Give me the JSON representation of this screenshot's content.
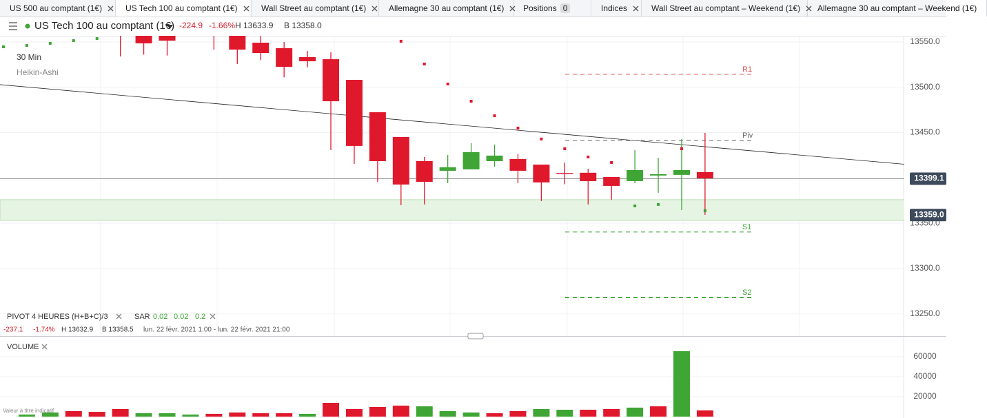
{
  "tabs": [
    {
      "label": "US 500 au comptant (1€)",
      "closable": true
    },
    {
      "label": "US Tech 100 au comptant (1€)",
      "closable": true,
      "active": true
    },
    {
      "label": "Wall Street au comptant (1€)",
      "closable": true
    },
    {
      "label": "Allemagne 30 au comptant (1€)",
      "closable": true
    },
    {
      "label": "Positions",
      "badge": "0",
      "closable": false
    },
    {
      "label": "Indices",
      "closable": true
    },
    {
      "label": "Wall Street au comptant – Weekend (1€)",
      "closable": true
    },
    {
      "label": "Allemagne 30 au comptant – Weekend (1€)",
      "closable": false
    }
  ],
  "header": {
    "instrument": "US Tech 100 au comptant (1€)",
    "change": "-224.9",
    "change_pct": "-1.66%",
    "high": "H 13633.9",
    "low": "B 13358.0"
  },
  "chart_data": [
    {
      "type": "candlestick",
      "timeframe": "30 Min",
      "style": "Heikin-Ashi",
      "open": [
        null,
        null,
        null,
        null,
        null,
        13570,
        13565,
        13560,
        null,
        13575,
        13565,
        13549.2,
        13543.2,
        13533.3,
        13531,
        13508.2,
        13472.5,
        13445.1,
        13418.5,
        13407.9,
        13409.4,
        13418.5,
        13420.8,
        13414.7,
        13405.3,
        13405.7,
        13401,
        13396.5,
        13402.6,
        13403.4,
        13406.4
      ],
      "high": [
        null,
        null,
        null,
        null,
        null,
        13580,
        13575,
        13570,
        null,
        13580,
        13570,
        13560,
        13550,
        13540,
        13538.6,
        13508.2,
        13472.5,
        13445.1,
        13423.1,
        13425.4,
        13438.3,
        13436.8,
        13426.1,
        13414.7,
        13417,
        13410.2,
        13401,
        13430.7,
        13422.3,
        13442.9,
        13449.7
      ],
      "low": [
        null,
        null,
        null,
        null,
        null,
        13534,
        13536,
        13535,
        null,
        13541.6,
        13525.7,
        13530,
        13511,
        13522,
        13430.7,
        13415.5,
        13395.7,
        13369.9,
        13370.7,
        13394.2,
        13409.4,
        13412.5,
        13394.2,
        13374.5,
        13393,
        13370.7,
        13376,
        13394.2,
        13383.6,
        13364.6,
        13359.3
      ],
      "close": [
        null,
        null,
        null,
        null,
        null,
        13560,
        13548.5,
        13551.5,
        null,
        13565,
        13541.6,
        13537.8,
        13522.6,
        13528.7,
        13484.6,
        13435.3,
        13418.5,
        13392.7,
        13395.7,
        13411.7,
        13428.4,
        13424.6,
        13407.9,
        13395,
        13404.9,
        13396.5,
        13391.2,
        13408.7,
        13404.1,
        13408.7,
        13399.5
      ],
      "up_color": "#3fa535",
      "down_color": "#e0182c",
      "sar": {
        "values": [
          13544.7,
          13546.2,
          13548.5,
          13551.5,
          13553.8,
          null,
          null,
          null,
          null,
          null,
          null,
          null,
          null,
          null,
          null,
          null,
          null,
          13550.8,
          13525.7,
          13503.6,
          13484.6,
          13468.6,
          13455,
          13442.9,
          13432.2,
          13423.1,
          13417,
          13369.1,
          13370.7,
          13432.2,
          13363.8
        ],
        "colors": [
          "#3fa535",
          "#3fa535",
          "#3fa535",
          "#3fa535",
          "#3fa535",
          null,
          null,
          null,
          null,
          null,
          null,
          null,
          null,
          null,
          null,
          null,
          null,
          "#e0182c",
          "#e0182c",
          "#e0182c",
          "#e0182c",
          "#e0182c",
          "#e0182c",
          "#e0182c",
          "#e0182c",
          "#e0182c",
          "#e0182c",
          "#3fa535",
          "#3fa535",
          "#e0182c",
          "#3fa535"
        ]
      },
      "pivots": [
        {
          "label": "R1",
          "value": 13514.3,
          "color": "#d9534f"
        },
        {
          "label": "Piv",
          "value": 13441.3,
          "color": "#666666"
        },
        {
          "label": "S1",
          "value": 13340.3,
          "color": "#3fa535"
        },
        {
          "label": "S2",
          "value": 13268.1,
          "color": "#3fa535"
        }
      ],
      "trendline": [
        13502.9,
        13411.0
      ],
      "price_line": 13399.1,
      "zone": [
        13353.2,
        13376
      ],
      "zone_label": {
        "value": 13359,
        "label": "13359.0"
      },
      "ylim": [
        13225.5,
        13556.8
      ],
      "yticks": [
        {
          "value": 13250,
          "label": "13250.0"
        },
        {
          "value": 13300,
          "label": "13300.0"
        },
        {
          "value": 13350,
          "label": "13350.0"
        },
        {
          "value": 13450,
          "label": "13450.0"
        },
        {
          "value": 13500,
          "label": "13500.0"
        },
        {
          "value": 13550,
          "label": "13550.0"
        }
      ],
      "indicators": {
        "pivot": "PIVOT",
        "pivot_period": "4 HEURES",
        "pivot_formula": "(H+B+C)/3",
        "sar": "SAR",
        "sar_params": [
          "0.02",
          "0.02",
          "0.2"
        ]
      },
      "summary": {
        "change": "-237.1",
        "change_pct": "-1.74%",
        "high": "H 13632.9",
        "low": "B 13358.5",
        "range": "lun. 22 févr. 2021 1:00 - lun. 22 févr. 2021 21:00"
      }
    },
    {
      "type": "bar",
      "title": "VOLUME",
      "note": "Valeur à titre indicatif",
      "values": [
        null,
        2100,
        4100,
        5500,
        4800,
        7600,
        3400,
        3400,
        2100,
        2800,
        4100,
        3400,
        3400,
        2800,
        13800,
        7600,
        9700,
        11000,
        10300,
        5500,
        4100,
        3400,
        5500,
        7600,
        6900,
        6900,
        7600,
        9000,
        10300,
        65500,
        6200
      ],
      "colors": [
        null,
        "#3fa535",
        "#3fa535",
        "#e0182c",
        "#e0182c",
        "#e0182c",
        "#3fa535",
        "#3fa535",
        "#3fa535",
        "#e0182c",
        "#e0182c",
        "#e0182c",
        "#e0182c",
        "#3fa535",
        "#e0182c",
        "#e0182c",
        "#e0182c",
        "#e0182c",
        "#3fa535",
        "#3fa535",
        "#3fa535",
        "#e0182c",
        "#e0182c",
        "#3fa535",
        "#3fa535",
        "#e0182c",
        "#e0182c",
        "#3fa535",
        "#e0182c",
        "#3fa535",
        "#e0182c"
      ],
      "ylim": [
        0,
        77900
      ],
      "yticks": [
        20000,
        40000,
        60000
      ]
    }
  ]
}
